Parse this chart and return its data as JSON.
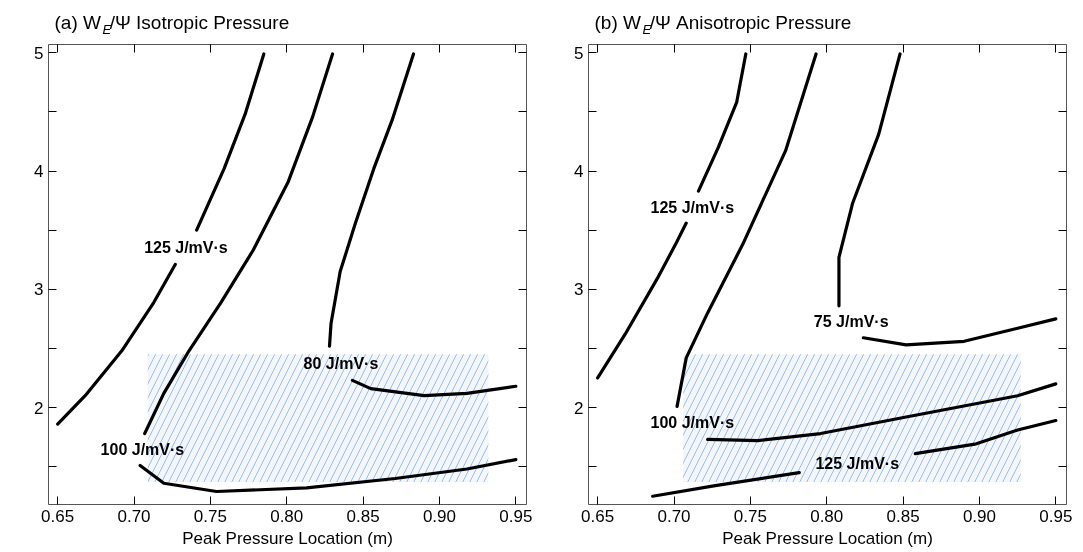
{
  "chart_data": [
    {
      "type": "line",
      "title": "(a) W$_{E}$/Ψ Isotropic Pressure",
      "xlabel": "Peak Pressure Location (m)",
      "xlim": [
        0.644,
        0.957
      ],
      "ylim": [
        1.18,
        5.07
      ],
      "xticks": [
        0.65,
        {
          "value": 0.7,
          "label": "0.70"
        },
        0.75,
        {
          "value": 0.8,
          "label": "0.80"
        },
        0.85,
        {
          "value": 0.9,
          "label": "0.90"
        },
        0.95
      ],
      "yticks": [
        {
          "value": 1.5,
          "label": null
        },
        2,
        {
          "value": 2.5,
          "label": null
        },
        3,
        {
          "value": 3.5,
          "label": null
        },
        4,
        {
          "value": 4.5,
          "label": null
        },
        5
      ],
      "grid": false,
      "legend": false,
      "marker": "none",
      "line_style": "solid",
      "series": [
        {
          "color": "#9dbbe8",
          "x": [
            0.709,
            0.932
          ],
          "values": [
            null,
            null
          ],
          "lower": [
            1.37,
            1.37
          ],
          "upper": [
            2.45,
            2.45
          ]
        },
        {
          "name": "125 J/mV·s",
          "color": "#000000",
          "x": [
            0.65,
            0.668,
            0.692,
            0.713,
            0.727,
            0.733,
            0.741,
            0.759,
            0.773,
            0.785
          ],
          "values": [
            1.86,
            2.1,
            2.48,
            2.89,
            3.21,
            null,
            3.5,
            4.02,
            4.49,
            4.99
          ]
        },
        {
          "name": "100 J/mV·s",
          "color": "#000000",
          "x": [
            0.95,
            0.918,
            0.871,
            0.813,
            0.754,
            0.7195,
            0.704,
            0.705,
            0.707,
            0.7195,
            0.736,
            0.757,
            0.778,
            0.801,
            0.817,
            0.83
          ],
          "values": [
            1.56,
            1.48,
            1.4,
            1.32,
            1.29,
            1.36,
            1.51,
            null,
            1.78,
            2.12,
            2.48,
            2.89,
            3.33,
            3.91,
            4.46,
            4.99
          ]
        },
        {
          "name": "80 J/mV·s",
          "color": "#000000",
          "x": [
            0.883,
            0.869,
            0.857,
            0.845,
            0.835,
            0.829,
            0.828,
            0.835,
            0.843,
            0.855,
            0.89,
            0.918,
            0.95
          ],
          "values": [
            4.99,
            4.43,
            4.02,
            3.56,
            3.15,
            2.71,
            2.52,
            null,
            2.23,
            2.16,
            2.1,
            2.12,
            2.18
          ]
        }
      ]
    },
    {
      "type": "line",
      "title": "(b) W$_{E}$/Ψ Anisotropic Pressure",
      "xlabel": "Peak Pressure Location (m)",
      "xlim": [
        0.644,
        0.957
      ],
      "ylim": [
        1.18,
        5.07
      ],
      "xticks": [
        0.65,
        {
          "value": 0.7,
          "label": "0.70"
        },
        0.75,
        {
          "value": 0.8,
          "label": "0.80"
        },
        0.85,
        {
          "value": 0.9,
          "label": "0.90"
        },
        0.95
      ],
      "yticks": [
        {
          "value": 1.5,
          "label": null
        },
        2,
        {
          "value": 2.5,
          "label": null
        },
        3,
        {
          "value": 3.5,
          "label": null
        },
        4,
        {
          "value": 4.5,
          "label": null
        },
        5
      ],
      "grid": false,
      "legend": false,
      "marker": "none",
      "line_style": "solid",
      "series": [
        {
          "color": "#9dbbe8",
          "x": [
            0.706,
            0.927
          ],
          "values": [
            null,
            null
          ],
          "lower": [
            1.37,
            1.37
          ],
          "upper": [
            2.45,
            2.45
          ]
        },
        {
          "name": "125 J/mV·s",
          "color": "#000000",
          "x": [
            0.65,
            0.668,
            0.689,
            0.701,
            0.708,
            0.712,
            0.716,
            0.729,
            0.741,
            0.747
          ],
          "values": [
            2.25,
            2.62,
            3.09,
            3.38,
            3.56,
            null,
            3.83,
            4.2,
            4.58,
            4.99
          ]
        },
        {
          "name": "100 J/mV·s",
          "color": "#000000",
          "x": [
            0.793,
            0.773,
            0.745,
            0.722,
            0.708,
            0.702,
            0.712,
            0.722,
            0.755,
            0.796,
            0.852,
            0.925,
            0.95
          ],
          "values": [
            4.99,
            4.17,
            3.38,
            2.8,
            2.42,
            2.01,
            null,
            1.73,
            1.72,
            1.78,
            1.92,
            2.1,
            2.2
          ]
        },
        {
          "name": "75 J/mV·s",
          "color": "#000000",
          "x": [
            0.848,
            0.834,
            0.817,
            0.808,
            0.808,
            0.816,
            0.824,
            0.852,
            0.89,
            0.925,
            0.95
          ],
          "values": [
            4.99,
            4.31,
            3.73,
            3.27,
            2.86,
            null,
            2.59,
            2.53,
            2.56,
            2.67,
            2.75
          ]
        },
        {
          "name": "125 J/mV·s",
          "color": "#000000",
          "x": [
            0.686,
            0.727,
            0.782,
            0.82,
            0.858,
            0.897,
            0.925,
            0.95
          ],
          "values": [
            1.25,
            1.34,
            1.45,
            null,
            1.61,
            1.69,
            1.81,
            1.89
          ]
        }
      ]
    }
  ]
}
